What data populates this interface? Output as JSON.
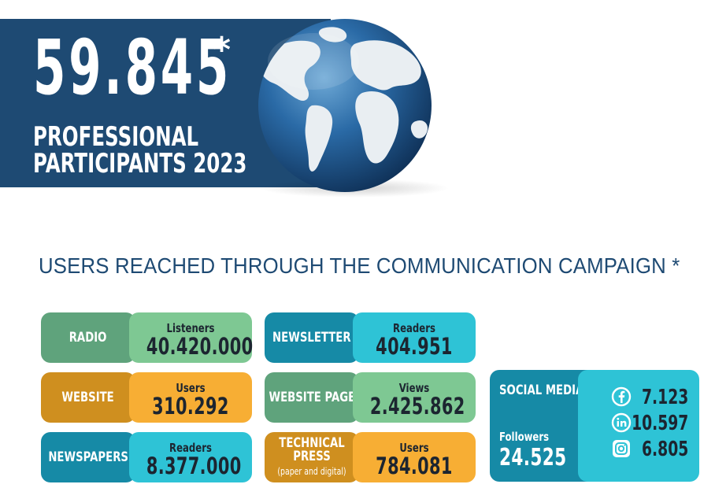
{
  "banner": {
    "number": "59.845",
    "asterisk": "*",
    "line1": "PROFESSIONAL",
    "line2": "PARTICIPANTS 2023"
  },
  "section_title": "USERS REACHED THROUGH THE COMMUNICATION CAMPAIGN *",
  "tiles": [
    {
      "label": "RADIO",
      "caption": "Listeners",
      "value": "40.420.000"
    },
    {
      "label": "WEBSITE",
      "caption": "Users",
      "value": "310.292"
    },
    {
      "label": "NEWSPAPERS",
      "caption": "Readers",
      "value": "8.377.000"
    },
    {
      "label": "NEWSLETTER",
      "caption": "Readers",
      "value": "404.951"
    },
    {
      "label": "WEBSITE PAGE",
      "caption": "Views",
      "value": "2.425.862"
    },
    {
      "label": "TECHNICAL PRESS",
      "label_note": "(paper and digital)",
      "caption": "Users",
      "value": "784.081"
    }
  ],
  "social": {
    "title": "SOCIAL MEDIA",
    "followers_label": "Followers",
    "followers_total": "24.525",
    "items": [
      {
        "icon": "facebook-icon",
        "value": "7.123"
      },
      {
        "icon": "linkedin-icon",
        "value": "10.597"
      },
      {
        "icon": "instagram-icon",
        "value": "6.805"
      }
    ]
  },
  "colors": {
    "navy": "#1e4a73",
    "green_dark": "#5fa37c",
    "green_light": "#7ec893",
    "teal_dark": "#168aa6",
    "teal_light": "#2ec3d6",
    "gold_dark": "#cf8f1f",
    "gold_light": "#f7ae34"
  }
}
